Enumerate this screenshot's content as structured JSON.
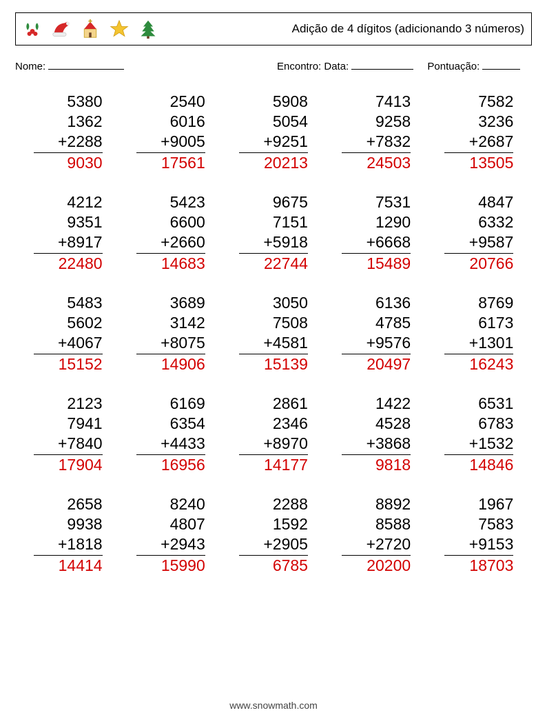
{
  "header": {
    "title": "Adição de 4 dígitos (adicionando 3 números)",
    "icons": [
      "holly-icon",
      "santa-hat-icon",
      "church-icon",
      "star-icon",
      "tree-icon"
    ]
  },
  "meta": {
    "name_label": "Nome:",
    "encounter_label": "Encontro: Data:",
    "score_label": "Pontuação:"
  },
  "style": {
    "answer_color": "#d30000",
    "text_color": "#000000",
    "font_size_problem": 23,
    "background": "#ffffff"
  },
  "problems": [
    [
      {
        "a": 5380,
        "b": 1362,
        "c": 2288,
        "ans": 9030
      },
      {
        "a": 2540,
        "b": 6016,
        "c": 9005,
        "ans": 17561
      },
      {
        "a": 5908,
        "b": 5054,
        "c": 9251,
        "ans": 20213
      },
      {
        "a": 7413,
        "b": 9258,
        "c": 7832,
        "ans": 24503
      },
      {
        "a": 7582,
        "b": 3236,
        "c": 2687,
        "ans": 13505
      }
    ],
    [
      {
        "a": 4212,
        "b": 9351,
        "c": 8917,
        "ans": 22480
      },
      {
        "a": 5423,
        "b": 6600,
        "c": 2660,
        "ans": 14683
      },
      {
        "a": 9675,
        "b": 7151,
        "c": 5918,
        "ans": 22744
      },
      {
        "a": 7531,
        "b": 1290,
        "c": 6668,
        "ans": 15489
      },
      {
        "a": 4847,
        "b": 6332,
        "c": 9587,
        "ans": 20766
      }
    ],
    [
      {
        "a": 5483,
        "b": 5602,
        "c": 4067,
        "ans": 15152
      },
      {
        "a": 3689,
        "b": 3142,
        "c": 8075,
        "ans": 14906
      },
      {
        "a": 3050,
        "b": 7508,
        "c": 4581,
        "ans": 15139
      },
      {
        "a": 6136,
        "b": 4785,
        "c": 9576,
        "ans": 20497
      },
      {
        "a": 8769,
        "b": 6173,
        "c": 1301,
        "ans": 16243
      }
    ],
    [
      {
        "a": 2123,
        "b": 7941,
        "c": 7840,
        "ans": 17904
      },
      {
        "a": 6169,
        "b": 6354,
        "c": 4433,
        "ans": 16956
      },
      {
        "a": 2861,
        "b": 2346,
        "c": 8970,
        "ans": 14177
      },
      {
        "a": 1422,
        "b": 4528,
        "c": 3868,
        "ans": 9818
      },
      {
        "a": 6531,
        "b": 6783,
        "c": 1532,
        "ans": 14846
      }
    ],
    [
      {
        "a": 2658,
        "b": 9938,
        "c": 1818,
        "ans": 14414
      },
      {
        "a": 8240,
        "b": 4807,
        "c": 2943,
        "ans": 15990
      },
      {
        "a": 2288,
        "b": 1592,
        "c": 2905,
        "ans": 6785
      },
      {
        "a": 8892,
        "b": 8588,
        "c": 2720,
        "ans": 20200
      },
      {
        "a": 1967,
        "b": 7583,
        "c": 9153,
        "ans": 18703
      }
    ]
  ],
  "footer": "www.snowmath.com"
}
